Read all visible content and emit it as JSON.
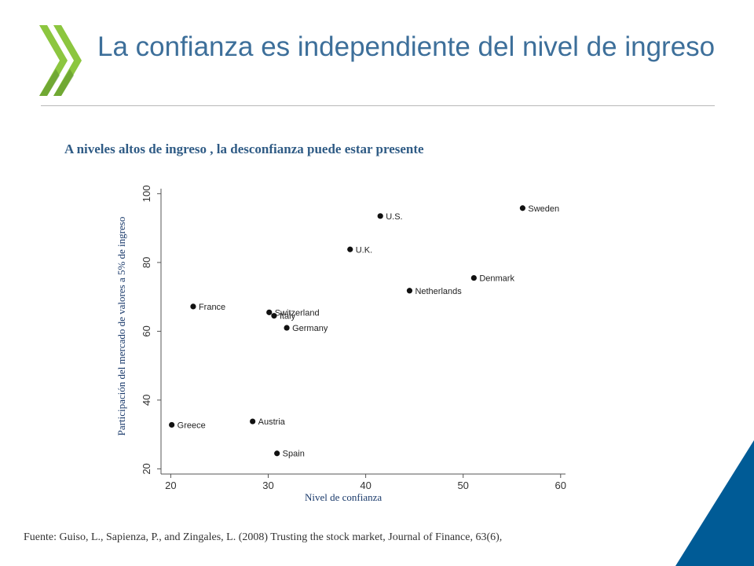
{
  "header": {
    "title": "La confianza es independiente del nivel de ingreso",
    "logo_icon": "oecd-chevron-logo",
    "logo_color": "#8cc63f",
    "title_color": "#3d6f9a"
  },
  "subtitle": "A niveles altos de ingreso , la desconfianza puede estar presente",
  "source_note": "Fuente: Guiso, L., Sapienza, P., and Zingales, L. (2008) Trusting the stock market, Journal of Finance, 63(6),",
  "corner_color": "#005b96",
  "chart_data": {
    "type": "scatter",
    "xlabel": "Nivel de confianza",
    "ylabel": "Participación del mercado de valores a 5% de ingreso",
    "xlim": [
      19,
      60.5
    ],
    "ylim": [
      18.5,
      101
    ],
    "xticks": [
      20,
      30,
      40,
      50,
      60
    ],
    "yticks": [
      20,
      40,
      60,
      80,
      100
    ],
    "grid": false,
    "points": [
      {
        "label": "Sweden",
        "x": 56.1,
        "y": 95.8
      },
      {
        "label": "U.S.",
        "x": 41.5,
        "y": 93.5
      },
      {
        "label": "U.K.",
        "x": 38.4,
        "y": 83.8
      },
      {
        "label": "Denmark",
        "x": 51.1,
        "y": 75.5
      },
      {
        "label": "Netherlands",
        "x": 44.5,
        "y": 71.8
      },
      {
        "label": "France",
        "x": 22.3,
        "y": 67.2
      },
      {
        "label": "Switzerland",
        "x": 30.1,
        "y": 65.5
      },
      {
        "label": "Italy",
        "x": 30.6,
        "y": 64.5
      },
      {
        "label": "Germany",
        "x": 31.9,
        "y": 61.0
      },
      {
        "label": "Austria",
        "x": 28.4,
        "y": 33.8
      },
      {
        "label": "Greece",
        "x": 20.1,
        "y": 32.8
      },
      {
        "label": "Spain",
        "x": 30.9,
        "y": 24.5
      }
    ]
  }
}
